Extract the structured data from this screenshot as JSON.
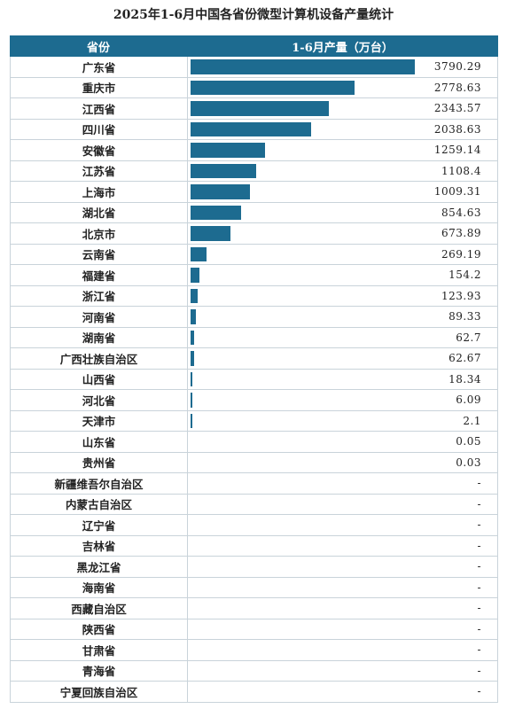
{
  "title": "2025年1-6月中国各省份微型计算机设备产量统计",
  "header": {
    "col1": "省份",
    "col2": "1-6月产量（万台）"
  },
  "colors": {
    "bar": "#1d6b90",
    "header_bg": "#1d6b90"
  },
  "chart_data": {
    "type": "bar",
    "orientation": "horizontal",
    "title": "2025年1-6月中国各省份微型计算机设备产量统计",
    "xlabel": "1-6月产量（万台）",
    "ylabel": "省份",
    "xlim": [
      0,
      3790.29
    ],
    "categories": [
      "广东省",
      "重庆市",
      "江西省",
      "四川省",
      "安徽省",
      "江苏省",
      "上海市",
      "湖北省",
      "北京市",
      "云南省",
      "福建省",
      "浙江省",
      "河南省",
      "湖南省",
      "广西壮族自治区",
      "山西省",
      "河北省",
      "天津市",
      "山东省",
      "贵州省",
      "新疆维吾尔自治区",
      "内蒙古自治区",
      "辽宁省",
      "吉林省",
      "黑龙江省",
      "海南省",
      "西藏自治区",
      "陕西省",
      "甘肃省",
      "青海省",
      "宁夏回族自治区"
    ],
    "values": [
      3790.29,
      2778.63,
      2343.57,
      2038.63,
      1259.14,
      1108.4,
      1009.31,
      854.63,
      673.89,
      269.19,
      154.2,
      123.93,
      89.33,
      62.7,
      62.67,
      18.34,
      6.09,
      2.1,
      0.05,
      0.03,
      null,
      null,
      null,
      null,
      null,
      null,
      null,
      null,
      null,
      null,
      null
    ],
    "labels": [
      "3790.29",
      "2778.63",
      "2343.57",
      "2038.63",
      "1259.14",
      "1108.4",
      "1009.31",
      "854.63",
      "673.89",
      "269.19",
      "154.2",
      "123.93",
      "89.33",
      "62.7",
      "62.67",
      "18.34",
      "6.09",
      "2.1",
      "0.05",
      "0.03",
      "-",
      "-",
      "-",
      "-",
      "-",
      "-",
      "-",
      "-",
      "-",
      "-",
      "-"
    ]
  }
}
